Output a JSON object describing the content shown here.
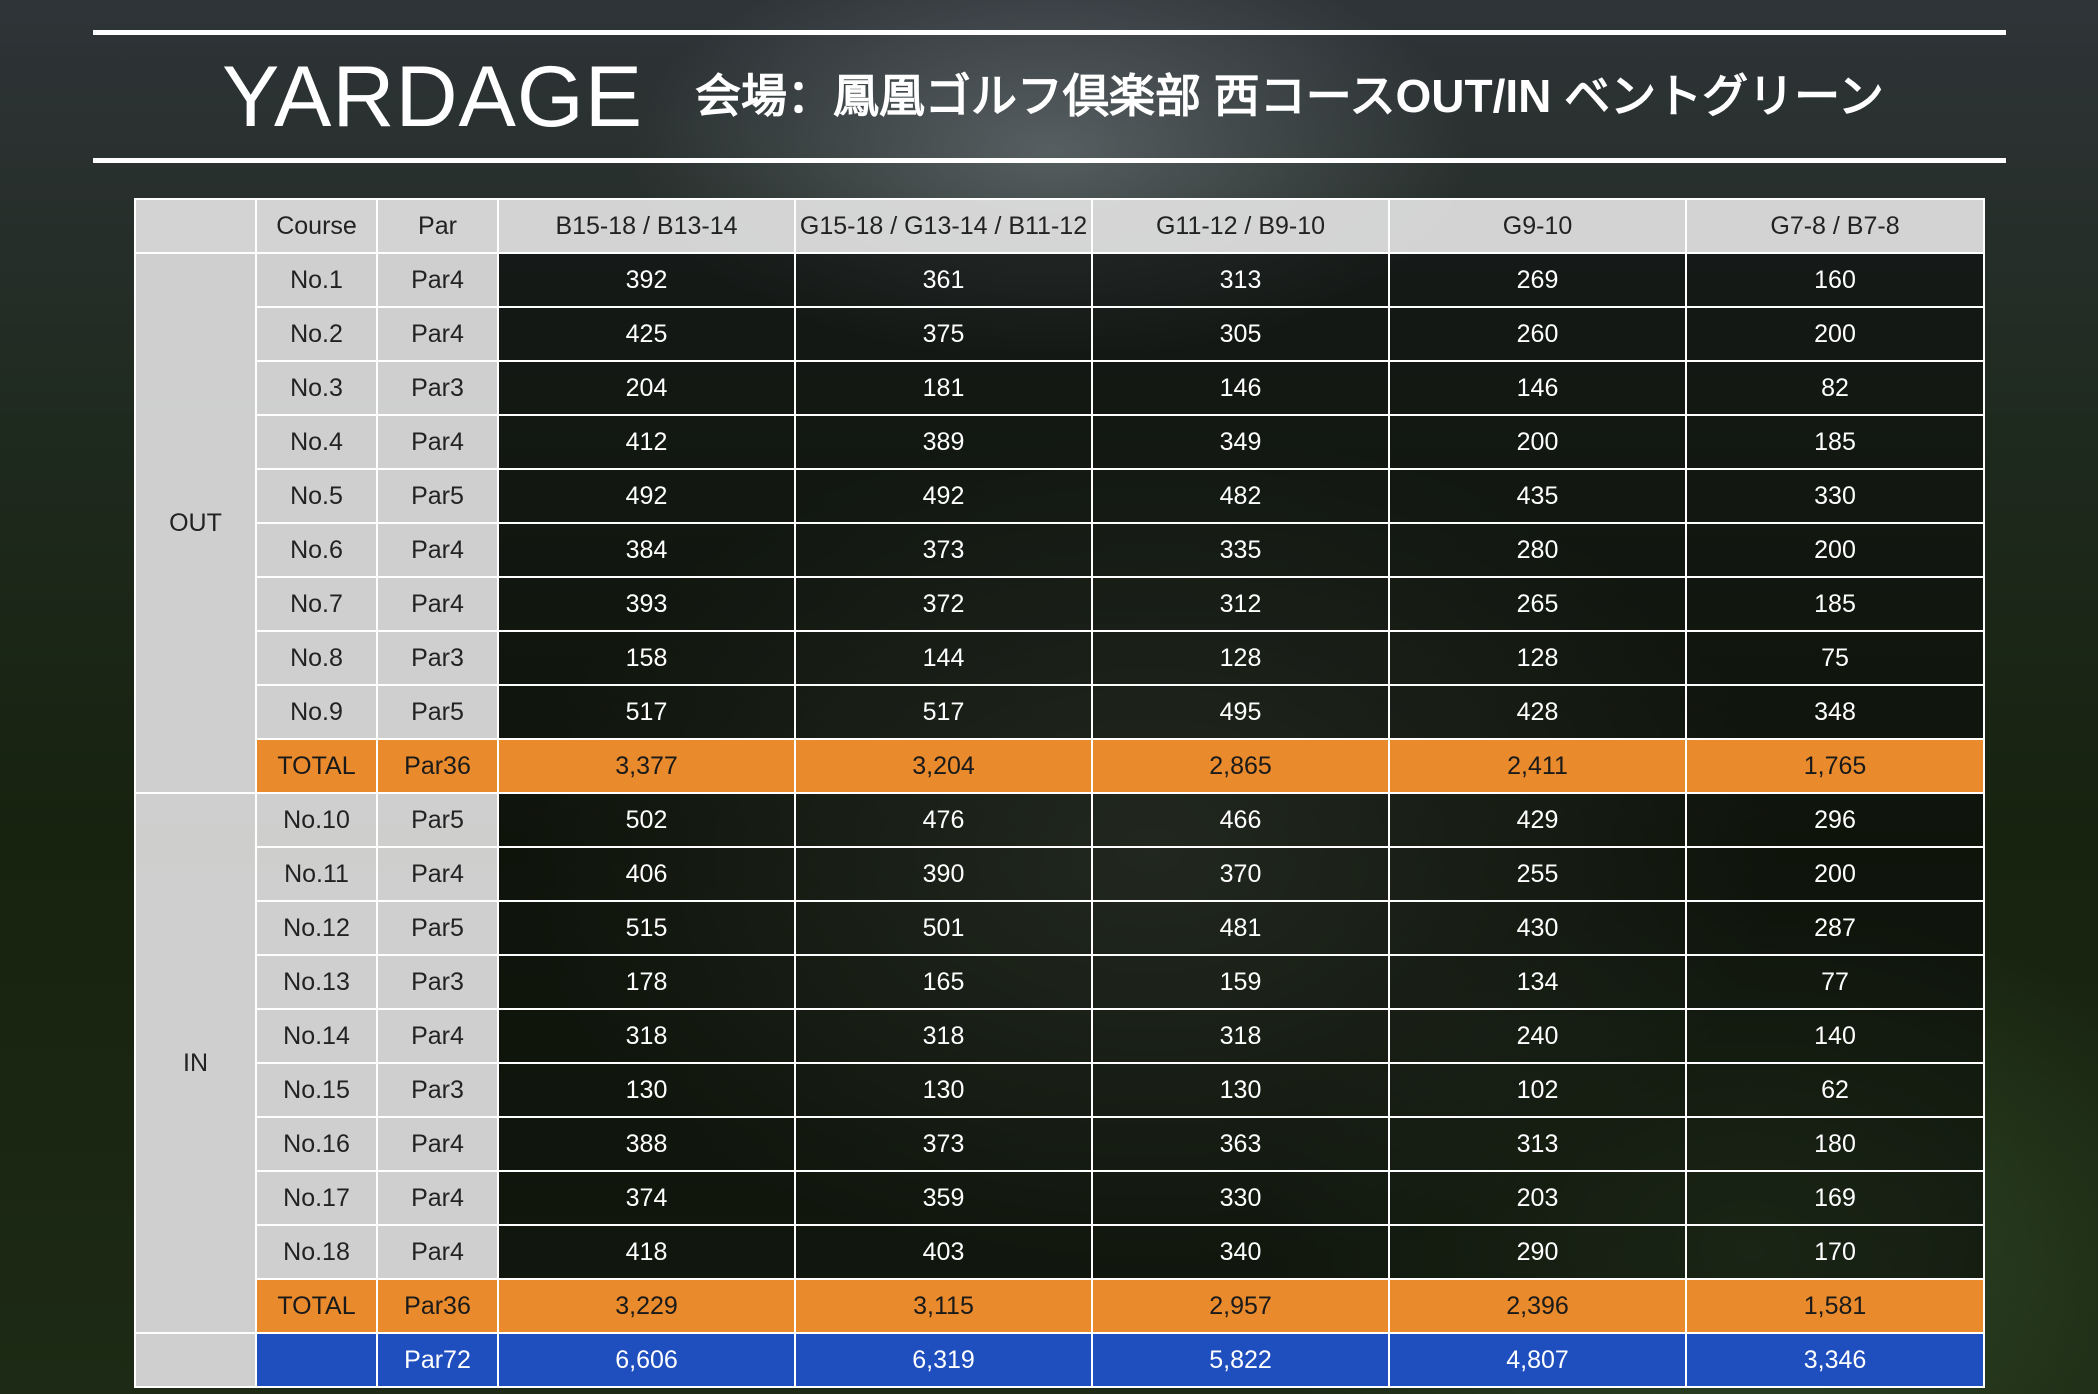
{
  "title": "YARDAGE",
  "subtitle": "会場：鳳凰ゴルフ倶楽部 西コースOUT/IN ベントグリーン",
  "table": {
    "headers": [
      "",
      "Course",
      "Par",
      "B15-18 / B13-14",
      "G15-18 / G13-14 / B11-12",
      "G11-12 / B9-10",
      "G9-10",
      "G7-8 / B7-8"
    ],
    "out": {
      "label": "OUT",
      "rows": [
        {
          "hole": "No.1",
          "par": "Par4",
          "values": [
            "392",
            "361",
            "313",
            "269",
            "160"
          ]
        },
        {
          "hole": "No.2",
          "par": "Par4",
          "values": [
            "425",
            "375",
            "305",
            "260",
            "200"
          ]
        },
        {
          "hole": "No.3",
          "par": "Par3",
          "values": [
            "204",
            "181",
            "146",
            "146",
            "82"
          ]
        },
        {
          "hole": "No.4",
          "par": "Par4",
          "values": [
            "412",
            "389",
            "349",
            "200",
            "185"
          ]
        },
        {
          "hole": "No.5",
          "par": "Par5",
          "values": [
            "492",
            "492",
            "482",
            "435",
            "330"
          ]
        },
        {
          "hole": "No.6",
          "par": "Par4",
          "values": [
            "384",
            "373",
            "335",
            "280",
            "200"
          ]
        },
        {
          "hole": "No.7",
          "par": "Par4",
          "values": [
            "393",
            "372",
            "312",
            "265",
            "185"
          ]
        },
        {
          "hole": "No.8",
          "par": "Par3",
          "values": [
            "158",
            "144",
            "128",
            "128",
            "75"
          ]
        },
        {
          "hole": "No.9",
          "par": "Par5",
          "values": [
            "517",
            "517",
            "495",
            "428",
            "348"
          ]
        }
      ],
      "total": {
        "label": "TOTAL",
        "par": "Par36",
        "values": [
          "3,377",
          "3,204",
          "2,865",
          "2,411",
          "1,765"
        ]
      }
    },
    "in": {
      "label": "IN",
      "rows": [
        {
          "hole": "No.10",
          "par": "Par5",
          "values": [
            "502",
            "476",
            "466",
            "429",
            "296"
          ]
        },
        {
          "hole": "No.11",
          "par": "Par4",
          "values": [
            "406",
            "390",
            "370",
            "255",
            "200"
          ]
        },
        {
          "hole": "No.12",
          "par": "Par5",
          "values": [
            "515",
            "501",
            "481",
            "430",
            "287"
          ]
        },
        {
          "hole": "No.13",
          "par": "Par3",
          "values": [
            "178",
            "165",
            "159",
            "134",
            "77"
          ]
        },
        {
          "hole": "No.14",
          "par": "Par4",
          "values": [
            "318",
            "318",
            "318",
            "240",
            "140"
          ]
        },
        {
          "hole": "No.15",
          "par": "Par3",
          "values": [
            "130",
            "130",
            "130",
            "102",
            "62"
          ]
        },
        {
          "hole": "No.16",
          "par": "Par4",
          "values": [
            "388",
            "373",
            "363",
            "313",
            "180"
          ]
        },
        {
          "hole": "No.17",
          "par": "Par4",
          "values": [
            "374",
            "359",
            "330",
            "203",
            "169"
          ]
        },
        {
          "hole": "No.18",
          "par": "Par4",
          "values": [
            "418",
            "403",
            "340",
            "290",
            "170"
          ]
        }
      ],
      "total": {
        "label": "TOTAL",
        "par": "Par36",
        "values": [
          "3,229",
          "3,115",
          "2,957",
          "2,396",
          "1,581"
        ]
      }
    },
    "grand_total": {
      "par": "Par72",
      "values": [
        "6,606",
        "6,319",
        "5,822",
        "4,807",
        "3,346"
      ]
    }
  },
  "colors": {
    "total_row": "#e98a2c",
    "grand_total_row": "#1f4fbf",
    "label_cells": "#dadada"
  }
}
